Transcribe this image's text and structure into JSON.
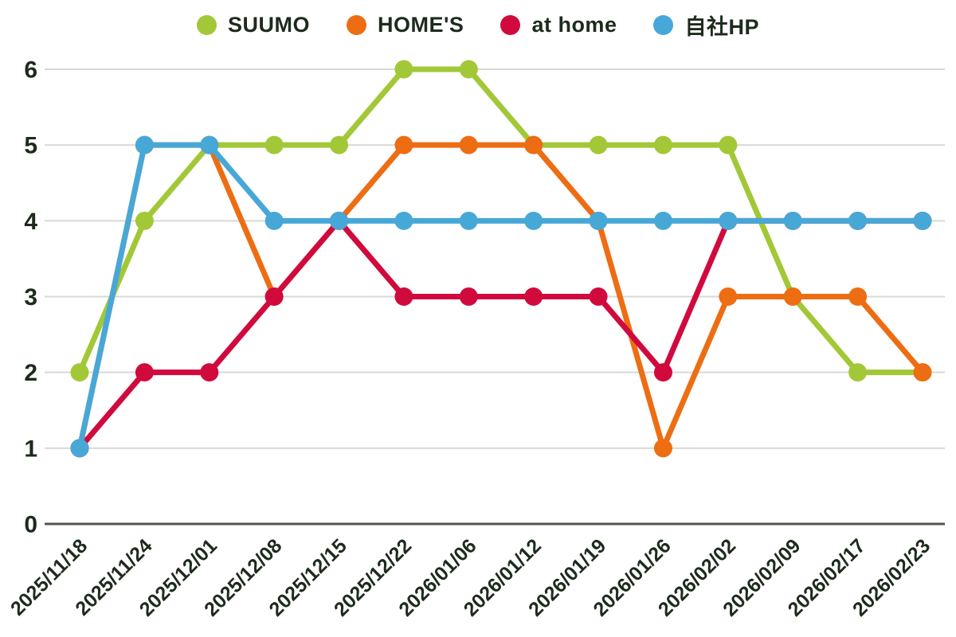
{
  "chart_data": {
    "type": "line",
    "title": "",
    "xlabel": "",
    "ylabel": "",
    "x": [
      "2025/11/18",
      "2025/11/24",
      "2025/12/01",
      "2025/12/08",
      "2025/12/15",
      "2025/12/22",
      "2026/01/06",
      "2026/01/12",
      "2026/01/19",
      "2026/01/26",
      "2026/02/02",
      "2026/02/09",
      "2026/02/17",
      "2026/02/23"
    ],
    "series": [
      {
        "name": "SUUMO",
        "color": "#a2c837",
        "values": [
          2,
          4,
          5,
          5,
          5,
          6,
          6,
          5,
          5,
          5,
          5,
          3,
          2,
          2
        ]
      },
      {
        "name": "HOME'S",
        "color": "#ed6d13",
        "values": [
          1,
          5,
          5,
          3,
          4,
          5,
          5,
          5,
          4,
          1,
          3,
          3,
          3,
          2
        ]
      },
      {
        "name": "at home",
        "color": "#d10a3e",
        "values": [
          1,
          2,
          2,
          3,
          4,
          3,
          3,
          3,
          3,
          2,
          4,
          4,
          4,
          4
        ]
      },
      {
        "name": "自社HP",
        "color": "#47a8d8",
        "values": [
          1,
          5,
          5,
          4,
          4,
          4,
          4,
          4,
          4,
          4,
          4,
          4,
          4,
          4
        ]
      }
    ],
    "ylim": [
      0,
      6
    ],
    "yticks": [
      0,
      1,
      2,
      3,
      4,
      5,
      6
    ],
    "grid": true,
    "legend_position": "top",
    "marker": "circle",
    "colors": {
      "text": "#1d2b1d",
      "gridline": "#d9d9d4",
      "axis": "#54554b",
      "background": "#ffffff"
    }
  }
}
